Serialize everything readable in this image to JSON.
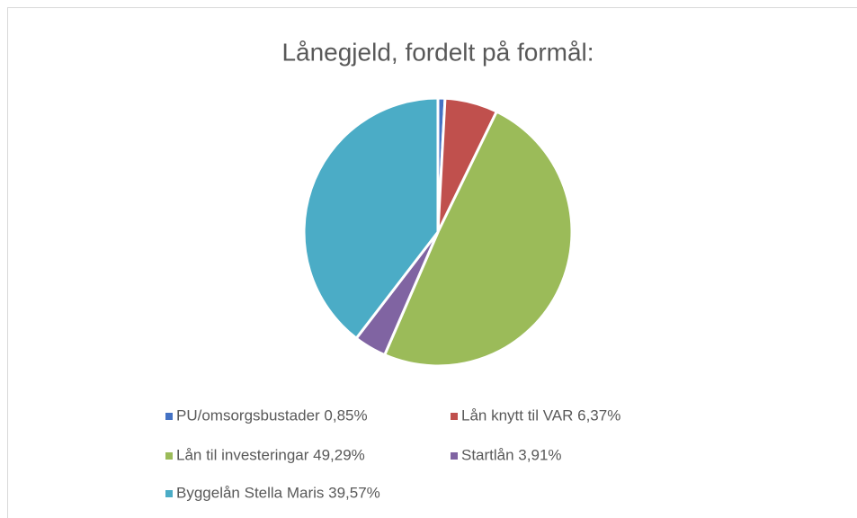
{
  "chart_data": {
    "type": "pie",
    "title": "Lånegjeld, fordelt på formål:",
    "categories": [
      "PU/omsorgsbustader 0,85%",
      "Lån knytt til VAR 6,37%",
      "Lån til investeringar 49,29%",
      "Startlån 3,91%",
      "Byggelån Stella Maris 39,57%"
    ],
    "values": [
      0.85,
      6.37,
      49.29,
      3.91,
      39.57
    ],
    "colors": [
      "#4472c4",
      "#c0504d",
      "#9bbb59",
      "#8064a2",
      "#4bacc6"
    ],
    "legend": "bottom"
  }
}
